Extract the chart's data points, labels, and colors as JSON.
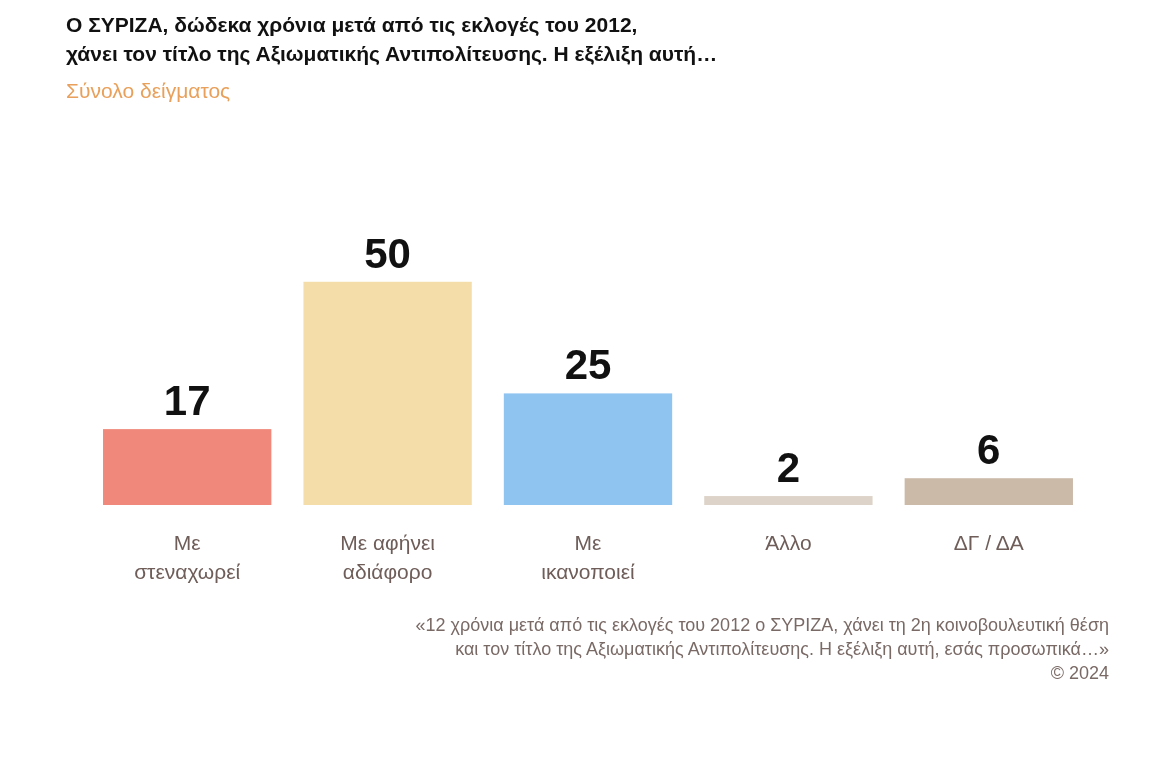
{
  "chart_data": {
    "type": "bar",
    "title": "Ο ΣΥΡΙΖΑ, δώδεκα χρόνια μετά από τις εκλογές του 2012,\nχάνει τον τίτλο της Αξιωματικής Αντιπολίτευσης. Η εξέλιξη αυτή…",
    "subtitle": "Σύνολο δείγματος",
    "categories": [
      "Με στεναχωρεί",
      "Με αφήνει αδιάφορο",
      "Με ικανοποιεί",
      "Άλλο",
      "ΔΓ / ΔΑ"
    ],
    "values": [
      17,
      50,
      25,
      2,
      6
    ],
    "colors": [
      "#f0897c",
      "#f4dda9",
      "#8fc4f0",
      "#ddd3c8",
      "#cbbaa8"
    ],
    "data_labels": true,
    "annotations": [
      "«12 χρόνια μετά από τις εκλογές του 2012 ο ΣΥΡΙΖΑ, χάνει τη 2η κοινοβουλευτική θέση",
      "και τον τίτλο της Αξιωματικής Αντιπολίτευσης. Η εξέλιξη αυτή, εσάς προσωπικά…»",
      "© 2024"
    ]
  }
}
